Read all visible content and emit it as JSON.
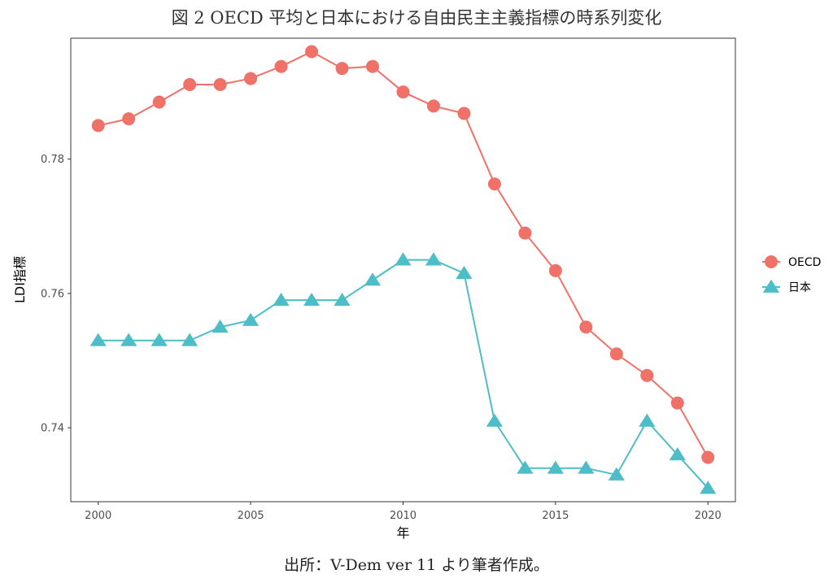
{
  "figure": {
    "title": "図 2 OECD 平均と日本における自由民主主義指標の時系列変化",
    "source": "出所：V-Dem ver 11 より筆者作成。"
  },
  "chart_data": {
    "type": "line",
    "xlabel": "年",
    "ylabel": "LDI指標",
    "xlim": [
      1999.1,
      2020.9
    ],
    "ylim": [
      0.729,
      0.798
    ],
    "x_ticks": [
      2000,
      2005,
      2010,
      2015,
      2020
    ],
    "y_ticks": [
      0.74,
      0.76,
      0.78
    ],
    "y_tick_labels": [
      "0.74",
      "0.76",
      "0.78"
    ],
    "x": [
      2000,
      2001,
      2002,
      2003,
      2004,
      2005,
      2006,
      2007,
      2008,
      2009,
      2010,
      2011,
      2012,
      2013,
      2014,
      2015,
      2016,
      2017,
      2018,
      2019,
      2020
    ],
    "series": [
      {
        "name": "OECD",
        "color": "#F07167",
        "marker": "circle",
        "values": [
          0.785,
          0.786,
          0.7885,
          0.7911,
          0.7911,
          0.792,
          0.7938,
          0.796,
          0.7935,
          0.7938,
          0.79,
          0.7879,
          0.7868,
          0.7763,
          0.769,
          0.7634,
          0.755,
          0.751,
          0.7478,
          0.7437,
          0.7356
        ]
      },
      {
        "name": "日本",
        "color": "#4DBEC7",
        "marker": "triangle",
        "values": [
          0.753,
          0.753,
          0.753,
          0.753,
          0.755,
          0.756,
          0.759,
          0.759,
          0.759,
          0.762,
          0.765,
          0.765,
          0.763,
          0.741,
          0.734,
          0.734,
          0.734,
          0.733,
          0.741,
          0.736,
          0.731
        ]
      }
    ],
    "grid": false,
    "legend_position": "right"
  }
}
